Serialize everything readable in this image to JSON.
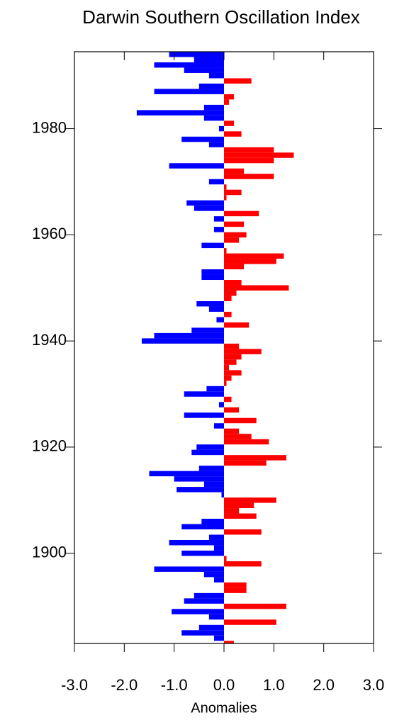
{
  "chart_data": {
    "type": "bar",
    "orientation": "horizontal",
    "title": "Darwin Southern Oscillation Index",
    "xlabel": "Anomalies",
    "x": [
      1994,
      1993,
      1992,
      1991,
      1990,
      1989,
      1988,
      1987,
      1986,
      1985,
      1984,
      1983,
      1982,
      1981,
      1980,
      1979,
      1978,
      1977,
      1976,
      1975,
      1974,
      1973,
      1972,
      1971,
      1970,
      1969,
      1968,
      1967,
      1966,
      1965,
      1964,
      1963,
      1962,
      1961,
      1960,
      1959,
      1958,
      1957,
      1956,
      1955,
      1954,
      1953,
      1952,
      1951,
      1950,
      1949,
      1948,
      1947,
      1946,
      1945,
      1944,
      1943,
      1942,
      1941,
      1940,
      1939,
      1938,
      1937,
      1936,
      1935,
      1934,
      1933,
      1932,
      1931,
      1930,
      1929,
      1928,
      1927,
      1926,
      1925,
      1924,
      1923,
      1922,
      1921,
      1920,
      1919,
      1918,
      1917,
      1916,
      1915,
      1914,
      1913,
      1912,
      1911,
      1910,
      1909,
      1908,
      1907,
      1906,
      1905,
      1904,
      1903,
      1902,
      1901,
      1900,
      1899,
      1898,
      1897,
      1896,
      1895,
      1894,
      1893,
      1892,
      1891,
      1890,
      1889,
      1888,
      1887,
      1886,
      1885,
      1884,
      1883
    ],
    "values": [
      -1.1,
      -0.6,
      -1.4,
      -0.8,
      -0.3,
      0.55,
      -0.5,
      -1.4,
      0.2,
      0.1,
      -0.4,
      -1.75,
      -0.4,
      0.2,
      -0.1,
      0.35,
      -0.85,
      -0.3,
      1.0,
      1.4,
      1.0,
      -1.1,
      0.4,
      1.0,
      -0.3,
      0.05,
      0.35,
      0.05,
      -0.75,
      -0.6,
      0.7,
      -0.2,
      0.4,
      -0.2,
      0.45,
      0.3,
      -0.45,
      0.05,
      1.2,
      1.05,
      0.4,
      -0.45,
      -0.45,
      0.35,
      1.3,
      0.25,
      0.15,
      -0.55,
      -0.3,
      0.15,
      -0.15,
      0.5,
      -0.65,
      -1.4,
      -1.65,
      0.3,
      0.75,
      0.35,
      0.25,
      0.1,
      0.35,
      0.15,
      0.05,
      -0.35,
      -0.8,
      0.15,
      -0.1,
      0.3,
      -0.8,
      0.65,
      -0.2,
      0.3,
      0.55,
      0.9,
      -0.55,
      -0.65,
      1.25,
      0.85,
      -0.5,
      -1.5,
      -1.0,
      -0.4,
      -0.95,
      -0.05,
      1.05,
      0.6,
      0.3,
      0.65,
      -0.45,
      -0.85,
      0.75,
      -0.3,
      -1.1,
      -0.2,
      -0.85,
      0.05,
      0.75,
      -1.4,
      -0.4,
      -0.2,
      0.45,
      0.45,
      -0.6,
      -0.8,
      1.25,
      -1.05,
      -0.3,
      1.05,
      -0.5,
      -0.85,
      -0.2,
      0.2
    ],
    "positive_color": "#ff0000",
    "negative_color": "#0000ff",
    "xlim": [
      -3,
      3
    ],
    "xticks": [
      {
        "value": -3,
        "label": "-3.0"
      },
      {
        "value": -2,
        "label": "-2.0"
      },
      {
        "value": -1,
        "label": "-1.0"
      },
      {
        "value": 0,
        "label": "0.0"
      },
      {
        "value": 1,
        "label": "1.0"
      },
      {
        "value": 2,
        "label": "2.0"
      },
      {
        "value": 3,
        "label": "3.0"
      }
    ],
    "ylim": [
      1883,
      1994.5
    ],
    "yticks": [
      1900,
      1920,
      1940,
      1960,
      1980
    ]
  }
}
